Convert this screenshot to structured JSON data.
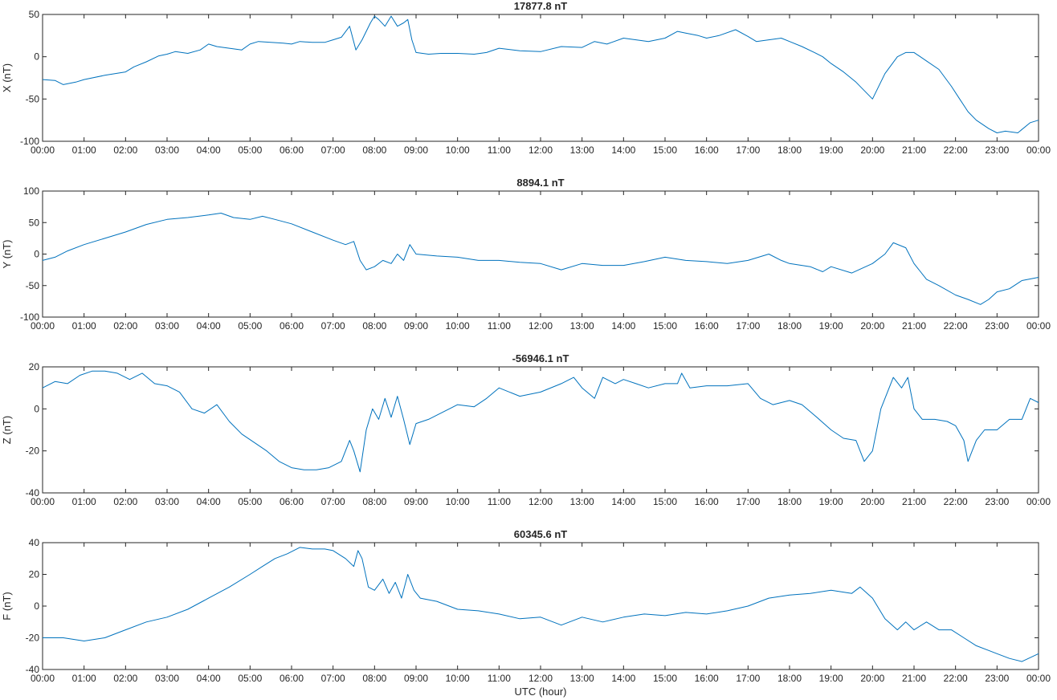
{
  "figure": {
    "xlabel": "UTC (hour)",
    "line_color": "#0072BD",
    "axis_color": "#262626"
  },
  "chart_data": [
    {
      "type": "line",
      "title": "17877.8 nT",
      "ylabel": "X (nT)",
      "xlabel": "",
      "xlim": [
        0,
        24
      ],
      "ylim": [
        -100,
        50
      ],
      "yticks": [
        -100,
        -50,
        0,
        50
      ],
      "xtick_labels": [
        "00:00",
        "01:00",
        "02:00",
        "03:00",
        "04:00",
        "05:00",
        "06:00",
        "07:00",
        "08:00",
        "09:00",
        "10:00",
        "11:00",
        "12:00",
        "13:00",
        "14:00",
        "15:00",
        "16:00",
        "17:00",
        "18:00",
        "19:00",
        "20:00",
        "21:00",
        "22:00",
        "23:00",
        "00:00"
      ],
      "grid": false,
      "x": [
        0,
        0.3,
        0.5,
        0.8,
        1.0,
        1.5,
        2.0,
        2.2,
        2.5,
        2.8,
        3.0,
        3.2,
        3.5,
        3.8,
        4.0,
        4.2,
        4.5,
        4.8,
        5.0,
        5.2,
        5.5,
        5.8,
        6.0,
        6.2,
        6.5,
        6.8,
        7.0,
        7.2,
        7.4,
        7.55,
        7.7,
        7.9,
        8.0,
        8.1,
        8.25,
        8.4,
        8.55,
        8.7,
        8.8,
        8.9,
        9.0,
        9.3,
        9.6,
        10.0,
        10.4,
        10.7,
        11.0,
        11.5,
        12.0,
        12.5,
        13.0,
        13.3,
        13.6,
        14.0,
        14.3,
        14.6,
        15.0,
        15.3,
        15.5,
        15.8,
        16.0,
        16.3,
        16.7,
        17.0,
        17.2,
        17.5,
        17.8,
        18.0,
        18.3,
        18.6,
        18.8,
        19.0,
        19.3,
        19.6,
        19.8,
        20.0,
        20.3,
        20.6,
        20.8,
        21.0,
        21.3,
        21.6,
        21.9,
        22.1,
        22.3,
        22.5,
        22.8,
        23.0,
        23.2,
        23.5,
        23.8,
        24.0
      ],
      "values": [
        -27,
        -28,
        -33,
        -30,
        -27,
        -22,
        -18,
        -12,
        -6,
        1,
        3,
        6,
        4,
        8,
        15,
        12,
        10,
        8,
        15,
        18,
        17,
        16,
        15,
        18,
        17,
        17,
        20,
        23,
        36,
        8,
        20,
        40,
        48,
        44,
        36,
        48,
        36,
        40,
        44,
        20,
        5,
        3,
        4,
        4,
        3,
        5,
        10,
        7,
        6,
        12,
        11,
        18,
        15,
        22,
        20,
        18,
        22,
        30,
        28,
        25,
        22,
        25,
        32,
        24,
        18,
        20,
        22,
        18,
        12,
        5,
        0,
        -8,
        -18,
        -30,
        -40,
        -50,
        -20,
        0,
        5,
        5,
        -5,
        -15,
        -35,
        -50,
        -65,
        -75,
        -85,
        -90,
        -88,
        -90,
        -78,
        -75
      ]
    },
    {
      "type": "line",
      "title": "8894.1 nT",
      "ylabel": "Y (nT)",
      "xlabel": "",
      "xlim": [
        0,
        24
      ],
      "ylim": [
        -100,
        100
      ],
      "yticks": [
        -100,
        -50,
        0,
        50,
        100
      ],
      "xtick_labels": [
        "00:00",
        "01:00",
        "02:00",
        "03:00",
        "04:00",
        "05:00",
        "06:00",
        "07:00",
        "08:00",
        "09:00",
        "10:00",
        "11:00",
        "12:00",
        "13:00",
        "14:00",
        "15:00",
        "16:00",
        "17:00",
        "18:00",
        "19:00",
        "20:00",
        "21:00",
        "22:00",
        "23:00",
        "00:00"
      ],
      "grid": false,
      "x": [
        0,
        0.3,
        0.6,
        1.0,
        1.5,
        2.0,
        2.5,
        3.0,
        3.5,
        4.0,
        4.3,
        4.6,
        5.0,
        5.3,
        5.6,
        6.0,
        6.5,
        7.0,
        7.3,
        7.5,
        7.65,
        7.8,
        8.0,
        8.2,
        8.4,
        8.55,
        8.7,
        8.85,
        9.0,
        9.5,
        10.0,
        10.5,
        11.0,
        11.5,
        12.0,
        12.5,
        13.0,
        13.5,
        14.0,
        14.5,
        15.0,
        15.5,
        16.0,
        16.5,
        17.0,
        17.5,
        17.8,
        18.0,
        18.5,
        18.8,
        19.0,
        19.5,
        20.0,
        20.3,
        20.5,
        20.8,
        21.0,
        21.3,
        21.6,
        22.0,
        22.3,
        22.6,
        22.8,
        23.0,
        23.3,
        23.6,
        24.0
      ],
      "values": [
        -10,
        -5,
        5,
        15,
        25,
        35,
        47,
        55,
        58,
        62,
        65,
        58,
        55,
        60,
        55,
        48,
        35,
        22,
        15,
        20,
        -10,
        -25,
        -20,
        -10,
        -15,
        0,
        -10,
        15,
        0,
        -3,
        -5,
        -10,
        -10,
        -13,
        -15,
        -25,
        -15,
        -18,
        -18,
        -12,
        -5,
        -10,
        -12,
        -15,
        -10,
        0,
        -10,
        -15,
        -20,
        -28,
        -20,
        -30,
        -15,
        0,
        18,
        10,
        -15,
        -40,
        -50,
        -65,
        -72,
        -80,
        -72,
        -60,
        -55,
        -42,
        -37
      ]
    },
    {
      "type": "line",
      "title": "-56946.1 nT",
      "ylabel": "Z (nT)",
      "xlabel": "",
      "xlim": [
        0,
        24
      ],
      "ylim": [
        -40,
        20
      ],
      "yticks": [
        -40,
        -20,
        0,
        20
      ],
      "xtick_labels": [
        "00:00",
        "01:00",
        "02:00",
        "03:00",
        "04:00",
        "05:00",
        "06:00",
        "07:00",
        "08:00",
        "09:00",
        "10:00",
        "11:00",
        "12:00",
        "13:00",
        "14:00",
        "15:00",
        "16:00",
        "17:00",
        "18:00",
        "19:00",
        "20:00",
        "21:00",
        "22:00",
        "23:00",
        "00:00"
      ],
      "grid": false,
      "x": [
        0,
        0.3,
        0.6,
        0.9,
        1.2,
        1.5,
        1.8,
        2.1,
        2.4,
        2.7,
        3.0,
        3.3,
        3.6,
        3.9,
        4.2,
        4.5,
        4.8,
        5.1,
        5.4,
        5.7,
        6.0,
        6.3,
        6.6,
        6.9,
        7.2,
        7.4,
        7.5,
        7.65,
        7.8,
        7.95,
        8.1,
        8.25,
        8.4,
        8.55,
        8.7,
        8.85,
        9.0,
        9.3,
        9.6,
        10.0,
        10.4,
        10.7,
        11.0,
        11.5,
        12.0,
        12.5,
        12.8,
        13.0,
        13.3,
        13.5,
        13.8,
        14.0,
        14.3,
        14.6,
        15.0,
        15.3,
        15.4,
        15.6,
        16.0,
        16.5,
        17.0,
        17.3,
        17.6,
        18.0,
        18.3,
        18.6,
        19.0,
        19.3,
        19.6,
        19.8,
        20.0,
        20.2,
        20.5,
        20.7,
        20.85,
        21.0,
        21.2,
        21.5,
        21.8,
        22.0,
        22.2,
        22.3,
        22.5,
        22.7,
        23.0,
        23.3,
        23.6,
        23.8,
        24.0
      ],
      "values": [
        10,
        13,
        12,
        16,
        18,
        18,
        17,
        14,
        17,
        12,
        11,
        8,
        0,
        -2,
        2,
        -6,
        -12,
        -16,
        -20,
        -25,
        -28,
        -29,
        -29,
        -28,
        -25,
        -15,
        -20,
        -30,
        -10,
        0,
        -5,
        5,
        -4,
        6,
        -5,
        -17,
        -7,
        -5,
        -2,
        2,
        1,
        5,
        10,
        6,
        8,
        12,
        15,
        10,
        5,
        15,
        12,
        14,
        12,
        10,
        12,
        12,
        17,
        10,
        11,
        11,
        12,
        5,
        2,
        4,
        2,
        -3,
        -10,
        -14,
        -15,
        -25,
        -20,
        0,
        15,
        10,
        15,
        0,
        -5,
        -5,
        -6,
        -8,
        -15,
        -25,
        -15,
        -10,
        -10,
        -5,
        -5,
        5,
        3
      ]
    },
    {
      "type": "line",
      "title": "60345.6 nT",
      "ylabel": "F (nT)",
      "xlabel": "UTC (hour)",
      "xlim": [
        0,
        24
      ],
      "ylim": [
        -40,
        40
      ],
      "yticks": [
        -40,
        -20,
        0,
        20,
        40
      ],
      "xtick_labels": [
        "00:00",
        "01:00",
        "02:00",
        "03:00",
        "04:00",
        "05:00",
        "06:00",
        "07:00",
        "08:00",
        "09:00",
        "10:00",
        "11:00",
        "12:00",
        "13:00",
        "14:00",
        "15:00",
        "16:00",
        "17:00",
        "18:00",
        "19:00",
        "20:00",
        "21:00",
        "22:00",
        "23:00",
        "00:00"
      ],
      "grid": false,
      "x": [
        0,
        0.5,
        1.0,
        1.5,
        2.0,
        2.5,
        3.0,
        3.5,
        4.0,
        4.5,
        5.0,
        5.3,
        5.6,
        5.9,
        6.2,
        6.5,
        6.8,
        7.0,
        7.3,
        7.5,
        7.6,
        7.7,
        7.85,
        8.0,
        8.2,
        8.35,
        8.5,
        8.65,
        8.8,
        8.95,
        9.1,
        9.5,
        10.0,
        10.5,
        11.0,
        11.5,
        12.0,
        12.5,
        13.0,
        13.5,
        14.0,
        14.5,
        15.0,
        15.5,
        16.0,
        16.5,
        17.0,
        17.5,
        18.0,
        18.5,
        19.0,
        19.5,
        19.7,
        20.0,
        20.3,
        20.6,
        20.8,
        21.0,
        21.3,
        21.6,
        21.9,
        22.2,
        22.5,
        22.8,
        23.0,
        23.3,
        23.6,
        24.0
      ],
      "values": [
        -20,
        -20,
        -22,
        -20,
        -15,
        -10,
        -7,
        -2,
        5,
        12,
        20,
        25,
        30,
        33,
        37,
        36,
        36,
        35,
        30,
        25,
        35,
        30,
        12,
        10,
        17,
        8,
        15,
        5,
        20,
        10,
        5,
        3,
        -2,
        -3,
        -5,
        -8,
        -7,
        -12,
        -7,
        -10,
        -7,
        -5,
        -6,
        -4,
        -5,
        -3,
        0,
        5,
        7,
        8,
        10,
        8,
        12,
        5,
        -8,
        -15,
        -10,
        -15,
        -10,
        -15,
        -15,
        -20,
        -25,
        -28,
        -30,
        -33,
        -35,
        -30
      ]
    }
  ]
}
